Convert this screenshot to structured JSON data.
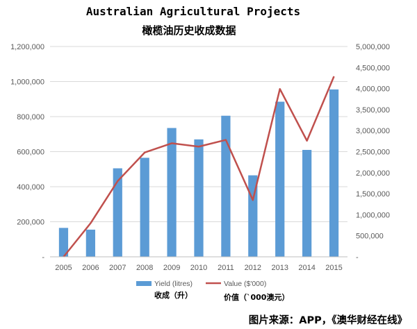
{
  "title": "Australian Agricultural Projects",
  "subtitle": "橄榄油历史收成数据",
  "source_note": "图片来源：APP，《澳华财经在线》",
  "colors": {
    "bar": "#5b9bd5",
    "line": "#c0504d",
    "gridline": "#d9d9d9",
    "axis": "#bfbfbf",
    "text": "#595959"
  },
  "chart_data": {
    "type": "bar",
    "categories": [
      "2005",
      "2006",
      "2007",
      "2008",
      "2009",
      "2010",
      "2011",
      "2012",
      "2013",
      "2014",
      "2015"
    ],
    "series": [
      {
        "name": "Yield (litres)",
        "name_cn": "收成（升）",
        "type": "bar",
        "axis": "left",
        "values": [
          165000,
          155000,
          505000,
          565000,
          735000,
          670000,
          805000,
          465000,
          885000,
          610000,
          955000
        ]
      },
      {
        "name": "Value ($'000)",
        "name_cn": "价值（`000澳元）",
        "type": "line",
        "axis": "right",
        "values": [
          0,
          800000,
          1800000,
          2480000,
          2700000,
          2620000,
          2780000,
          1350000,
          3990000,
          2760000,
          4290000
        ]
      }
    ],
    "y_left": {
      "ylim": [
        0,
        1200000
      ],
      "ticks": [
        0,
        200000,
        400000,
        600000,
        800000,
        1000000,
        1200000
      ],
      "tick_labels": [
        "-",
        "200,000",
        "400,000",
        "600,000",
        "800,000",
        "1,000,000",
        "1,200,000"
      ]
    },
    "y_right": {
      "ylim": [
        0,
        5000000
      ],
      "ticks": [
        0,
        500000,
        1000000,
        1500000,
        2000000,
        2500000,
        3000000,
        3500000,
        4000000,
        4500000,
        5000000
      ],
      "tick_labels": [
        "-",
        "500,000",
        "1,000,000",
        "1,500,000",
        "2,000,000",
        "2,500,000",
        "3,000,000",
        "3,500,000",
        "4,000,000",
        "4,500,000",
        "5,000,000"
      ]
    },
    "grid": true,
    "legend_position": "bottom"
  }
}
